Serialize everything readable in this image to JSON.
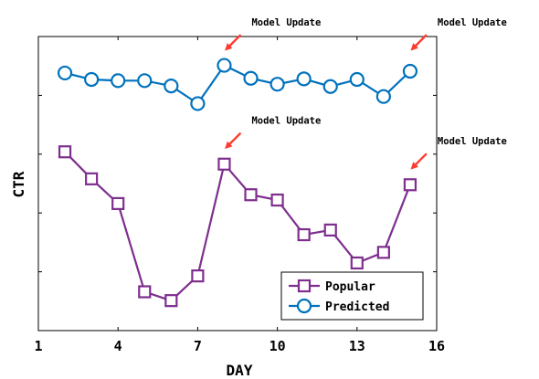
{
  "chart_data": {
    "type": "line",
    "xlabel": "DAY",
    "ylabel": "CTR",
    "xlim": [
      1,
      16
    ],
    "ylim": [
      0,
      5
    ],
    "x_ticks": [
      1,
      4,
      7,
      10,
      13,
      16
    ],
    "y_ticks": [
      1,
      2,
      3,
      4
    ],
    "y_tick_labels_shown": false,
    "grid": false,
    "legend_position": "bottom-right",
    "series": [
      {
        "name": "Popular",
        "color": "#7E2F8E",
        "marker": "square",
        "x": [
          2,
          3,
          4,
          5,
          6,
          7,
          8,
          9,
          10,
          11,
          12,
          13,
          14,
          15
        ],
        "y": [
          3.04,
          2.58,
          2.16,
          0.66,
          0.51,
          0.93,
          2.83,
          2.31,
          2.22,
          1.63,
          1.71,
          1.15,
          1.33,
          2.48
        ]
      },
      {
        "name": "Predicted",
        "color": "#0072BD",
        "marker": "circle",
        "x": [
          2,
          3,
          4,
          5,
          6,
          7,
          8,
          9,
          10,
          11,
          12,
          13,
          14,
          15
        ],
        "y": [
          4.38,
          4.27,
          4.25,
          4.25,
          4.16,
          3.86,
          4.51,
          4.29,
          4.19,
          4.28,
          4.15,
          4.27,
          3.98,
          4.41
        ]
      }
    ],
    "annotations": [
      {
        "text": "Model Update",
        "x": 8,
        "y": 4.75
      },
      {
        "text": "Model Update",
        "x": 15,
        "y": 4.75
      },
      {
        "text": "Model Update",
        "x": 8,
        "y": 3.08
      },
      {
        "text": "Model Update",
        "x": 15,
        "y": 2.73
      }
    ],
    "annotation_arrow_color": "#FF3B30"
  }
}
